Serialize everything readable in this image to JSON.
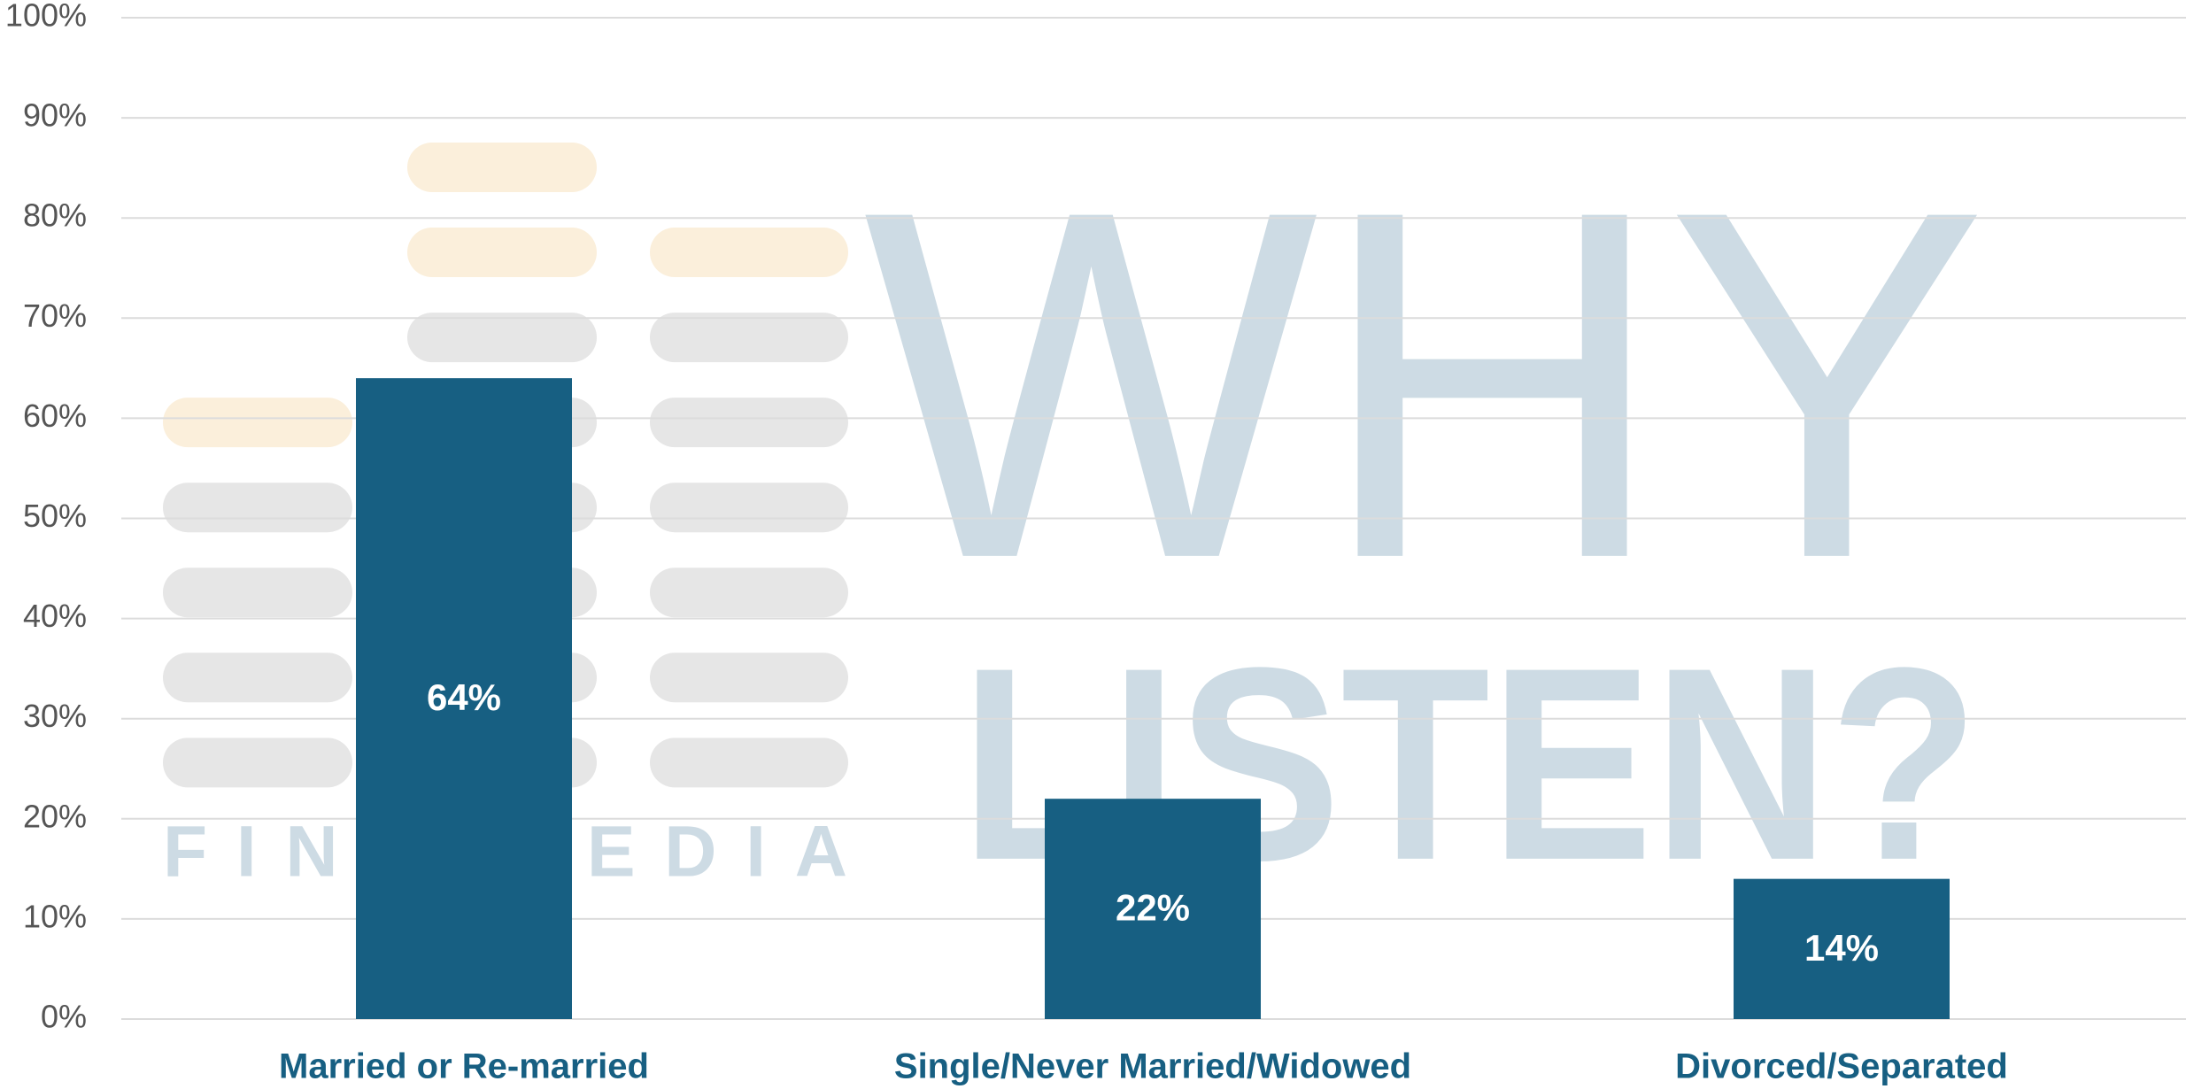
{
  "chart_data": {
    "type": "bar",
    "categories": [
      "Married or Re-married",
      "Single/Never Married/Widowed",
      "Divorced/Separated"
    ],
    "values": [
      64,
      22,
      14
    ],
    "value_labels": [
      "64%",
      "22%",
      "14%"
    ],
    "color": "#175f82",
    "ylim": [
      0,
      100
    ],
    "yticks": [
      {
        "value": 0,
        "label": "0%"
      },
      {
        "value": 10,
        "label": "10%"
      },
      {
        "value": 20,
        "label": "20%"
      },
      {
        "value": 30,
        "label": "30%"
      },
      {
        "value": 40,
        "label": "40%"
      },
      {
        "value": 50,
        "label": "50%"
      },
      {
        "value": 60,
        "label": "60%"
      },
      {
        "value": 70,
        "label": "70%"
      },
      {
        "value": 80,
        "label": "80%"
      },
      {
        "value": 90,
        "label": "90%"
      },
      {
        "value": 100,
        "label": "100%"
      }
    ],
    "grid": true,
    "watermark": {
      "line1": "WHY",
      "line2": "LISTEN?",
      "brand": "FINN MEDIA"
    }
  }
}
